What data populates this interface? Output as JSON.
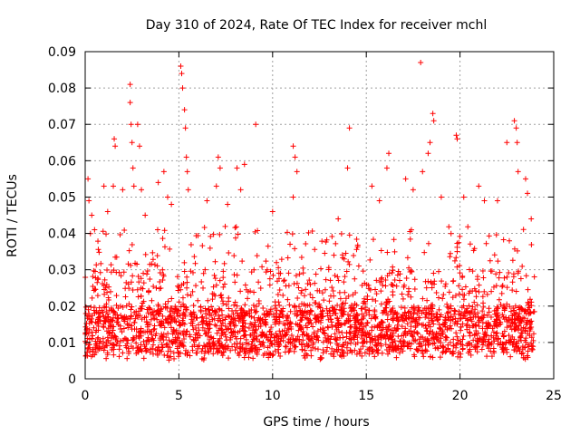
{
  "chart_data": {
    "type": "scatter",
    "title": "Day 310 of 2024, Rate Of TEC Index for receiver mchl",
    "xlabel": "GPS time / hours",
    "ylabel": "ROTI / TECUs",
    "xlim": [
      0,
      25
    ],
    "ylim": [
      0,
      0.09
    ],
    "x_ticks": [
      0,
      5,
      10,
      15,
      20,
      25
    ],
    "x_tick_labels": [
      "0",
      "5",
      "10",
      "15",
      "20",
      "25"
    ],
    "y_ticks": [
      0,
      0.01,
      0.02,
      0.03,
      0.04,
      0.05,
      0.06,
      0.07,
      0.08,
      0.09
    ],
    "y_tick_labels": [
      "0",
      "0.01",
      "0.02",
      "0.03",
      "0.04",
      "0.05",
      "0.06",
      "0.07",
      "0.08",
      "0.09"
    ],
    "grid": true,
    "marker": "+",
    "series_color": "#ff0000",
    "x_data_range": [
      0,
      24
    ],
    "typical_band": [
      0.005,
      0.03
    ],
    "highlighted_points": [
      {
        "x": 0.15,
        "y": 0.055
      },
      {
        "x": 0.2,
        "y": 0.049
      },
      {
        "x": 0.35,
        "y": 0.045
      },
      {
        "x": 0.5,
        "y": 0.041
      },
      {
        "x": 1.0,
        "y": 0.053
      },
      {
        "x": 1.2,
        "y": 0.046
      },
      {
        "x": 1.5,
        "y": 0.053
      },
      {
        "x": 1.55,
        "y": 0.066
      },
      {
        "x": 1.6,
        "y": 0.064
      },
      {
        "x": 2.0,
        "y": 0.052
      },
      {
        "x": 2.4,
        "y": 0.081
      },
      {
        "x": 2.4,
        "y": 0.076
      },
      {
        "x": 2.45,
        "y": 0.07
      },
      {
        "x": 2.5,
        "y": 0.065
      },
      {
        "x": 2.55,
        "y": 0.058
      },
      {
        "x": 2.6,
        "y": 0.053
      },
      {
        "x": 2.8,
        "y": 0.07
      },
      {
        "x": 2.9,
        "y": 0.064
      },
      {
        "x": 3.0,
        "y": 0.052
      },
      {
        "x": 3.2,
        "y": 0.045
      },
      {
        "x": 3.9,
        "y": 0.054
      },
      {
        "x": 4.2,
        "y": 0.057
      },
      {
        "x": 4.4,
        "y": 0.05
      },
      {
        "x": 4.6,
        "y": 0.048
      },
      {
        "x": 5.1,
        "y": 0.086
      },
      {
        "x": 5.15,
        "y": 0.084
      },
      {
        "x": 5.2,
        "y": 0.08
      },
      {
        "x": 5.3,
        "y": 0.074
      },
      {
        "x": 5.35,
        "y": 0.069
      },
      {
        "x": 5.4,
        "y": 0.061
      },
      {
        "x": 5.45,
        "y": 0.057
      },
      {
        "x": 5.5,
        "y": 0.052
      },
      {
        "x": 6.5,
        "y": 0.049
      },
      {
        "x": 7.0,
        "y": 0.053
      },
      {
        "x": 7.1,
        "y": 0.061
      },
      {
        "x": 7.2,
        "y": 0.058
      },
      {
        "x": 7.6,
        "y": 0.048
      },
      {
        "x": 8.1,
        "y": 0.058
      },
      {
        "x": 8.5,
        "y": 0.059
      },
      {
        "x": 8.3,
        "y": 0.052
      },
      {
        "x": 9.1,
        "y": 0.07
      },
      {
        "x": 10.0,
        "y": 0.046
      },
      {
        "x": 11.1,
        "y": 0.064
      },
      {
        "x": 11.2,
        "y": 0.061
      },
      {
        "x": 11.3,
        "y": 0.057
      },
      {
        "x": 11.1,
        "y": 0.05
      },
      {
        "x": 13.5,
        "y": 0.044
      },
      {
        "x": 14.1,
        "y": 0.069
      },
      {
        "x": 14.0,
        "y": 0.058
      },
      {
        "x": 15.3,
        "y": 0.053
      },
      {
        "x": 15.7,
        "y": 0.049
      },
      {
        "x": 16.2,
        "y": 0.062
      },
      {
        "x": 16.1,
        "y": 0.058
      },
      {
        "x": 17.1,
        "y": 0.055
      },
      {
        "x": 17.5,
        "y": 0.052
      },
      {
        "x": 17.9,
        "y": 0.087
      },
      {
        "x": 18.0,
        "y": 0.057
      },
      {
        "x": 18.3,
        "y": 0.062
      },
      {
        "x": 18.4,
        "y": 0.065
      },
      {
        "x": 18.55,
        "y": 0.073
      },
      {
        "x": 18.6,
        "y": 0.071
      },
      {
        "x": 19.0,
        "y": 0.05
      },
      {
        "x": 19.8,
        "y": 0.067
      },
      {
        "x": 19.85,
        "y": 0.066
      },
      {
        "x": 20.2,
        "y": 0.05
      },
      {
        "x": 21.0,
        "y": 0.053
      },
      {
        "x": 21.3,
        "y": 0.049
      },
      {
        "x": 22.0,
        "y": 0.049
      },
      {
        "x": 22.5,
        "y": 0.065
      },
      {
        "x": 22.9,
        "y": 0.071
      },
      {
        "x": 23.0,
        "y": 0.069
      },
      {
        "x": 23.05,
        "y": 0.065
      },
      {
        "x": 23.1,
        "y": 0.057
      },
      {
        "x": 23.5,
        "y": 0.055
      },
      {
        "x": 23.6,
        "y": 0.051
      },
      {
        "x": 23.8,
        "y": 0.044
      }
    ]
  }
}
